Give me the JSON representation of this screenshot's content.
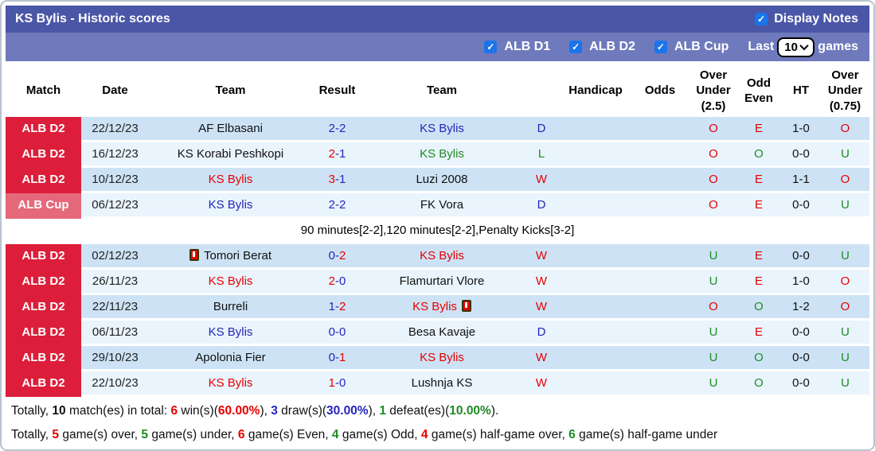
{
  "title_bar": {
    "title": "KS Bylis - Historic scores",
    "display_notes_label": "Display Notes",
    "display_notes_checked": true
  },
  "filter_bar": {
    "leagues": [
      {
        "label": "ALB D1",
        "checked": true
      },
      {
        "label": "ALB D2",
        "checked": true
      },
      {
        "label": "ALB Cup",
        "checked": true
      }
    ],
    "last_label": "Last",
    "games_label": "games",
    "last_games_value": "10"
  },
  "colors": {
    "red": "#e80000",
    "blue": "#2525bb",
    "green": "#1f8b24",
    "black": "#111111",
    "badge_d2": "#dc1e3a",
    "badge_cup": "#e5697a",
    "row_dark": "#cde3f5",
    "row_light": "#e9f4fd",
    "bar_dark": "#4a56a6",
    "bar_light": "#6f7abd",
    "checkbox_blue": "#1b74e8"
  },
  "table": {
    "headers": [
      "Match",
      "Date",
      "Team",
      "Result",
      "Team",
      "",
      "Handicap",
      "Odds",
      "Over Under (2.5)",
      "Odd Even",
      "HT",
      "Over Under (0.75)"
    ],
    "rows": [
      {
        "type": "match",
        "league": "ALB D2",
        "league_style": "d2",
        "date": "22/12/23",
        "home": {
          "name": "AF Elbasani",
          "color": "black",
          "red_card": null
        },
        "score": {
          "home": "2",
          "away": "2",
          "home_color": "blue",
          "away_color": "blue"
        },
        "away": {
          "name": "KS Bylis",
          "color": "blue",
          "red_card": null
        },
        "result_letter": {
          "text": "D",
          "color": "blue"
        },
        "handicap": "",
        "odds": "",
        "over_under_25": {
          "text": "O",
          "color": "red"
        },
        "odd_even": {
          "text": "E",
          "color": "red"
        },
        "ht": "1-0",
        "over_under_075": {
          "text": "O",
          "color": "red"
        }
      },
      {
        "type": "match",
        "league": "ALB D2",
        "league_style": "d2",
        "date": "16/12/23",
        "home": {
          "name": "KS Korabi Peshkopi",
          "color": "black",
          "red_card": null
        },
        "score": {
          "home": "2",
          "away": "1",
          "home_color": "red",
          "away_color": "blue"
        },
        "away": {
          "name": "KS Bylis",
          "color": "green",
          "red_card": null
        },
        "result_letter": {
          "text": "L",
          "color": "green"
        },
        "handicap": "",
        "odds": "",
        "over_under_25": {
          "text": "O",
          "color": "red"
        },
        "odd_even": {
          "text": "O",
          "color": "green"
        },
        "ht": "0-0",
        "over_under_075": {
          "text": "U",
          "color": "green"
        }
      },
      {
        "type": "match",
        "league": "ALB D2",
        "league_style": "d2",
        "date": "10/12/23",
        "home": {
          "name": "KS Bylis",
          "color": "red",
          "red_card": null
        },
        "score": {
          "home": "3",
          "away": "1",
          "home_color": "red",
          "away_color": "blue"
        },
        "away": {
          "name": "Luzi 2008",
          "color": "black",
          "red_card": null
        },
        "result_letter": {
          "text": "W",
          "color": "red"
        },
        "handicap": "",
        "odds": "",
        "over_under_25": {
          "text": "O",
          "color": "red"
        },
        "odd_even": {
          "text": "E",
          "color": "red"
        },
        "ht": "1-1",
        "over_under_075": {
          "text": "O",
          "color": "red"
        }
      },
      {
        "type": "match",
        "league": "ALB Cup",
        "league_style": "cup",
        "date": "06/12/23",
        "home": {
          "name": "KS Bylis",
          "color": "blue",
          "red_card": null
        },
        "score": {
          "home": "2",
          "away": "2",
          "home_color": "blue",
          "away_color": "blue"
        },
        "away": {
          "name": "FK Vora",
          "color": "black",
          "red_card": null
        },
        "result_letter": {
          "text": "D",
          "color": "blue"
        },
        "handicap": "",
        "odds": "",
        "over_under_25": {
          "text": "O",
          "color": "red"
        },
        "odd_even": {
          "text": "E",
          "color": "red"
        },
        "ht": "0-0",
        "over_under_075": {
          "text": "U",
          "color": "green"
        }
      },
      {
        "type": "note",
        "text": "90 minutes[2-2],120 minutes[2-2],Penalty Kicks[3-2]"
      },
      {
        "type": "match",
        "league": "ALB D2",
        "league_style": "d2",
        "date": "02/12/23",
        "home": {
          "name": "Tomori Berat",
          "color": "black",
          "red_card": "before"
        },
        "score": {
          "home": "0",
          "away": "2",
          "home_color": "blue",
          "away_color": "red"
        },
        "away": {
          "name": "KS Bylis",
          "color": "red",
          "red_card": null
        },
        "result_letter": {
          "text": "W",
          "color": "red"
        },
        "handicap": "",
        "odds": "",
        "over_under_25": {
          "text": "U",
          "color": "green"
        },
        "odd_even": {
          "text": "E",
          "color": "red"
        },
        "ht": "0-0",
        "over_under_075": {
          "text": "U",
          "color": "green"
        }
      },
      {
        "type": "match",
        "league": "ALB D2",
        "league_style": "d2",
        "date": "26/11/23",
        "home": {
          "name": "KS Bylis",
          "color": "red",
          "red_card": null
        },
        "score": {
          "home": "2",
          "away": "0",
          "home_color": "red",
          "away_color": "blue"
        },
        "away": {
          "name": "Flamurtari Vlore",
          "color": "black",
          "red_card": null
        },
        "result_letter": {
          "text": "W",
          "color": "red"
        },
        "handicap": "",
        "odds": "",
        "over_under_25": {
          "text": "U",
          "color": "green"
        },
        "odd_even": {
          "text": "E",
          "color": "red"
        },
        "ht": "1-0",
        "over_under_075": {
          "text": "O",
          "color": "red"
        }
      },
      {
        "type": "match",
        "league": "ALB D2",
        "league_style": "d2",
        "date": "22/11/23",
        "home": {
          "name": "Burreli",
          "color": "black",
          "red_card": null
        },
        "score": {
          "home": "1",
          "away": "2",
          "home_color": "blue",
          "away_color": "red"
        },
        "away": {
          "name": "KS Bylis",
          "color": "red",
          "red_card": "after"
        },
        "result_letter": {
          "text": "W",
          "color": "red"
        },
        "handicap": "",
        "odds": "",
        "over_under_25": {
          "text": "O",
          "color": "red"
        },
        "odd_even": {
          "text": "O",
          "color": "green"
        },
        "ht": "1-2",
        "over_under_075": {
          "text": "O",
          "color": "red"
        }
      },
      {
        "type": "match",
        "league": "ALB D2",
        "league_style": "d2",
        "date": "06/11/23",
        "home": {
          "name": "KS Bylis",
          "color": "blue",
          "red_card": null
        },
        "score": {
          "home": "0",
          "away": "0",
          "home_color": "blue",
          "away_color": "blue"
        },
        "away": {
          "name": "Besa Kavaje",
          "color": "black",
          "red_card": null
        },
        "result_letter": {
          "text": "D",
          "color": "blue"
        },
        "handicap": "",
        "odds": "",
        "over_under_25": {
          "text": "U",
          "color": "green"
        },
        "odd_even": {
          "text": "E",
          "color": "red"
        },
        "ht": "0-0",
        "over_under_075": {
          "text": "U",
          "color": "green"
        }
      },
      {
        "type": "match",
        "league": "ALB D2",
        "league_style": "d2",
        "date": "29/10/23",
        "home": {
          "name": "Apolonia Fier",
          "color": "black",
          "red_card": null
        },
        "score": {
          "home": "0",
          "away": "1",
          "home_color": "blue",
          "away_color": "red"
        },
        "away": {
          "name": "KS Bylis",
          "color": "red",
          "red_card": null
        },
        "result_letter": {
          "text": "W",
          "color": "red"
        },
        "handicap": "",
        "odds": "",
        "over_under_25": {
          "text": "U",
          "color": "green"
        },
        "odd_even": {
          "text": "O",
          "color": "green"
        },
        "ht": "0-0",
        "over_under_075": {
          "text": "U",
          "color": "green"
        }
      },
      {
        "type": "match",
        "league": "ALB D2",
        "league_style": "d2",
        "date": "22/10/23",
        "home": {
          "name": "KS Bylis",
          "color": "red",
          "red_card": null
        },
        "score": {
          "home": "1",
          "away": "0",
          "home_color": "red",
          "away_color": "blue"
        },
        "away": {
          "name": "Lushnja KS",
          "color": "black",
          "red_card": null
        },
        "result_letter": {
          "text": "W",
          "color": "red"
        },
        "handicap": "",
        "odds": "",
        "over_under_25": {
          "text": "U",
          "color": "green"
        },
        "odd_even": {
          "text": "O",
          "color": "green"
        },
        "ht": "0-0",
        "over_under_075": {
          "text": "U",
          "color": "green"
        }
      }
    ]
  },
  "footer": {
    "line1": [
      {
        "text": "Totally, ",
        "color": "black",
        "bold": false
      },
      {
        "text": "10",
        "color": "black",
        "bold": true
      },
      {
        "text": " match(es) in total: ",
        "color": "black",
        "bold": false
      },
      {
        "text": "6",
        "color": "red",
        "bold": true
      },
      {
        "text": " win(s)(",
        "color": "black",
        "bold": false
      },
      {
        "text": "60.00%",
        "color": "red",
        "bold": true
      },
      {
        "text": "), ",
        "color": "black",
        "bold": false
      },
      {
        "text": "3",
        "color": "blue",
        "bold": true
      },
      {
        "text": " draw(s)(",
        "color": "black",
        "bold": false
      },
      {
        "text": "30.00%",
        "color": "blue",
        "bold": true
      },
      {
        "text": "), ",
        "color": "black",
        "bold": false
      },
      {
        "text": "1",
        "color": "green",
        "bold": true
      },
      {
        "text": " defeat(es)(",
        "color": "black",
        "bold": false
      },
      {
        "text": "10.00%",
        "color": "green",
        "bold": true
      },
      {
        "text": ").",
        "color": "black",
        "bold": false
      }
    ],
    "line2": [
      {
        "text": "Totally, ",
        "color": "black",
        "bold": false
      },
      {
        "text": "5",
        "color": "red",
        "bold": true
      },
      {
        "text": " game(s) over, ",
        "color": "black",
        "bold": false
      },
      {
        "text": "5",
        "color": "green",
        "bold": true
      },
      {
        "text": " game(s) under, ",
        "color": "black",
        "bold": false
      },
      {
        "text": "6",
        "color": "red",
        "bold": true
      },
      {
        "text": " game(s) Even, ",
        "color": "black",
        "bold": false
      },
      {
        "text": "4",
        "color": "green",
        "bold": true
      },
      {
        "text": " game(s) Odd, ",
        "color": "black",
        "bold": false
      },
      {
        "text": "4",
        "color": "red",
        "bold": true
      },
      {
        "text": " game(s) half-game over, ",
        "color": "black",
        "bold": false
      },
      {
        "text": "6",
        "color": "green",
        "bold": true
      },
      {
        "text": " game(s) half-game under",
        "color": "black",
        "bold": false
      }
    ]
  }
}
